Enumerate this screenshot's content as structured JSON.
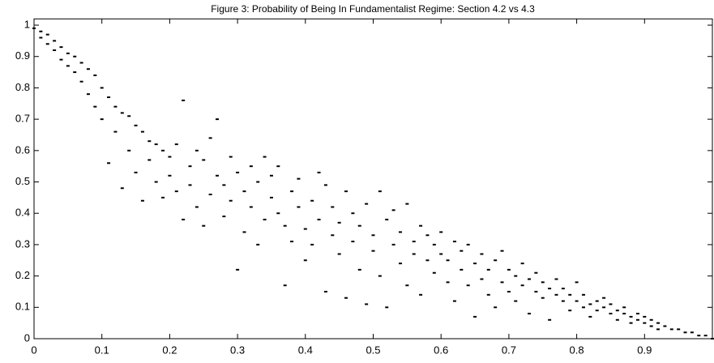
{
  "chart_data": {
    "type": "scatter",
    "title": "Figure 3: Probability of Being In Fundamentalist Regime: Section 4.2 vs 4.3",
    "color": "#000000",
    "xlim": [
      0,
      1
    ],
    "ylim": [
      0,
      1.02
    ],
    "xticks": [
      0,
      0.1,
      0.2,
      0.3,
      0.4,
      0.5,
      0.6,
      0.7,
      0.8,
      0.9
    ],
    "yticks": [
      0,
      0.1,
      0.2,
      0.3,
      0.4,
      0.5,
      0.6,
      0.7,
      0.8,
      0.9,
      1
    ],
    "grid": false,
    "x": [
      0.0,
      0.01,
      0.01,
      0.02,
      0.02,
      0.03,
      0.03,
      0.04,
      0.04,
      0.05,
      0.05,
      0.06,
      0.06,
      0.07,
      0.07,
      0.08,
      0.08,
      0.09,
      0.09,
      0.1,
      0.1,
      0.11,
      0.11,
      0.12,
      0.12,
      0.13,
      0.13,
      0.14,
      0.14,
      0.15,
      0.15,
      0.16,
      0.16,
      0.17,
      0.17,
      0.18,
      0.18,
      0.19,
      0.19,
      0.2,
      0.2,
      0.21,
      0.21,
      0.22,
      0.22,
      0.23,
      0.23,
      0.24,
      0.24,
      0.25,
      0.25,
      0.26,
      0.26,
      0.27,
      0.27,
      0.28,
      0.28,
      0.29,
      0.29,
      0.3,
      0.3,
      0.31,
      0.31,
      0.32,
      0.32,
      0.33,
      0.33,
      0.34,
      0.34,
      0.35,
      0.35,
      0.36,
      0.36,
      0.37,
      0.37,
      0.38,
      0.38,
      0.39,
      0.39,
      0.4,
      0.4,
      0.41,
      0.41,
      0.42,
      0.42,
      0.43,
      0.43,
      0.44,
      0.44,
      0.45,
      0.45,
      0.46,
      0.46,
      0.47,
      0.47,
      0.48,
      0.48,
      0.49,
      0.49,
      0.5,
      0.5,
      0.51,
      0.51,
      0.52,
      0.52,
      0.53,
      0.53,
      0.54,
      0.54,
      0.55,
      0.55,
      0.56,
      0.56,
      0.57,
      0.57,
      0.58,
      0.58,
      0.59,
      0.59,
      0.6,
      0.6,
      0.61,
      0.61,
      0.62,
      0.62,
      0.63,
      0.63,
      0.64,
      0.64,
      0.65,
      0.65,
      0.66,
      0.66,
      0.67,
      0.67,
      0.68,
      0.68,
      0.69,
      0.69,
      0.7,
      0.7,
      0.71,
      0.71,
      0.72,
      0.72,
      0.73,
      0.73,
      0.74,
      0.74,
      0.75,
      0.75,
      0.76,
      0.76,
      0.77,
      0.77,
      0.78,
      0.78,
      0.79,
      0.79,
      0.8,
      0.8,
      0.81,
      0.81,
      0.82,
      0.82,
      0.83,
      0.83,
      0.84,
      0.84,
      0.85,
      0.85,
      0.86,
      0.86,
      0.87,
      0.87,
      0.88,
      0.88,
      0.89,
      0.89,
      0.9,
      0.9,
      0.91,
      0.91,
      0.92,
      0.92,
      0.93,
      0.94,
      0.95,
      0.96,
      0.97,
      0.98,
      0.99,
      1.0
    ],
    "values": [
      0.99,
      0.98,
      0.96,
      0.97,
      0.94,
      0.95,
      0.92,
      0.93,
      0.89,
      0.91,
      0.87,
      0.9,
      0.85,
      0.88,
      0.82,
      0.86,
      0.78,
      0.84,
      0.74,
      0.8,
      0.7,
      0.77,
      0.56,
      0.74,
      0.66,
      0.72,
      0.48,
      0.71,
      0.6,
      0.68,
      0.53,
      0.66,
      0.44,
      0.63,
      0.57,
      0.62,
      0.5,
      0.6,
      0.45,
      0.58,
      0.52,
      0.47,
      0.62,
      0.76,
      0.38,
      0.55,
      0.49,
      0.6,
      0.42,
      0.57,
      0.36,
      0.64,
      0.46,
      0.52,
      0.7,
      0.49,
      0.39,
      0.58,
      0.44,
      0.53,
      0.22,
      0.47,
      0.34,
      0.55,
      0.42,
      0.5,
      0.3,
      0.58,
      0.38,
      0.45,
      0.52,
      0.4,
      0.55,
      0.17,
      0.36,
      0.47,
      0.31,
      0.42,
      0.51,
      0.35,
      0.25,
      0.44,
      0.3,
      0.53,
      0.38,
      0.15,
      0.49,
      0.33,
      0.42,
      0.27,
      0.37,
      0.47,
      0.13,
      0.31,
      0.4,
      0.36,
      0.22,
      0.43,
      0.11,
      0.33,
      0.28,
      0.47,
      0.2,
      0.38,
      0.1,
      0.3,
      0.41,
      0.24,
      0.34,
      0.43,
      0.17,
      0.31,
      0.27,
      0.36,
      0.14,
      0.25,
      0.33,
      0.3,
      0.21,
      0.27,
      0.34,
      0.18,
      0.25,
      0.31,
      0.12,
      0.22,
      0.28,
      0.17,
      0.3,
      0.24,
      0.07,
      0.19,
      0.27,
      0.14,
      0.22,
      0.25,
      0.1,
      0.18,
      0.28,
      0.15,
      0.22,
      0.2,
      0.12,
      0.17,
      0.24,
      0.19,
      0.08,
      0.15,
      0.21,
      0.13,
      0.18,
      0.16,
      0.06,
      0.14,
      0.19,
      0.12,
      0.16,
      0.14,
      0.09,
      0.12,
      0.18,
      0.1,
      0.14,
      0.11,
      0.07,
      0.12,
      0.09,
      0.1,
      0.13,
      0.08,
      0.11,
      0.09,
      0.06,
      0.08,
      0.1,
      0.07,
      0.05,
      0.06,
      0.08,
      0.05,
      0.07,
      0.06,
      0.04,
      0.05,
      0.03,
      0.04,
      0.03,
      0.03,
      0.02,
      0.02,
      0.01,
      0.01,
      0.0
    ]
  }
}
